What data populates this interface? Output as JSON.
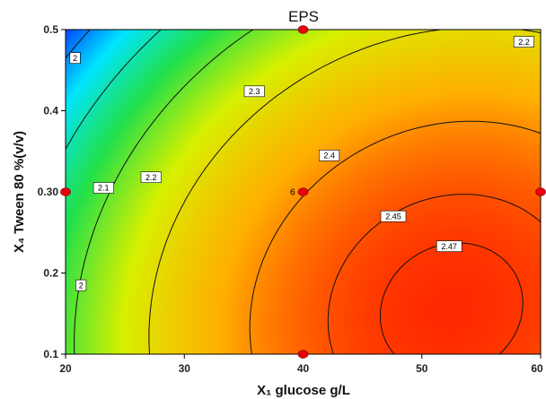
{
  "chart_data": {
    "type": "contour",
    "title": "EPS",
    "xlabel": "X₁ glucose g/L",
    "ylabel": "X₄ Tween 80 %(v/v)",
    "xlim": [
      20,
      60
    ],
    "ylim": [
      0.1,
      0.5
    ],
    "x_ticks": [
      "20",
      "30",
      "40",
      "50",
      "60"
    ],
    "y_ticks": [
      "0.1",
      "0.2",
      "0.30",
      "0.4",
      "0.5"
    ],
    "colormap": [
      "#0033ff",
      "#00e5ff",
      "#22e04a",
      "#d8f000",
      "#ffb000",
      "#ff2a00"
    ],
    "contours": [
      {
        "level": "2",
        "labels": [
          {
            "x": 20.8,
            "y": 0.465
          },
          {
            "x": 21.3,
            "y": 0.185
          }
        ]
      },
      {
        "level": "2.1",
        "labels": [
          {
            "x": 23.2,
            "y": 0.305
          }
        ]
      },
      {
        "level": "2.2",
        "labels": [
          {
            "x": 27.2,
            "y": 0.318
          },
          {
            "x": 58.6,
            "y": 0.485
          }
        ]
      },
      {
        "level": "2.3",
        "labels": [
          {
            "x": 35.9,
            "y": 0.424
          }
        ]
      },
      {
        "level": "2.4",
        "labels": [
          {
            "x": 42.2,
            "y": 0.345
          }
        ]
      },
      {
        "level": "2.45",
        "labels": [
          {
            "x": 47.6,
            "y": 0.27
          }
        ]
      },
      {
        "level": "2.47",
        "labels": [
          {
            "x": 52.3,
            "y": 0.233
          }
        ]
      }
    ],
    "design_points": [
      {
        "x": 40,
        "y": 0.5
      },
      {
        "x": 20,
        "y": 0.3
      },
      {
        "x": 40,
        "y": 0.3,
        "count": "6"
      },
      {
        "x": 60,
        "y": 0.3
      },
      {
        "x": 40,
        "y": 0.1
      }
    ]
  }
}
